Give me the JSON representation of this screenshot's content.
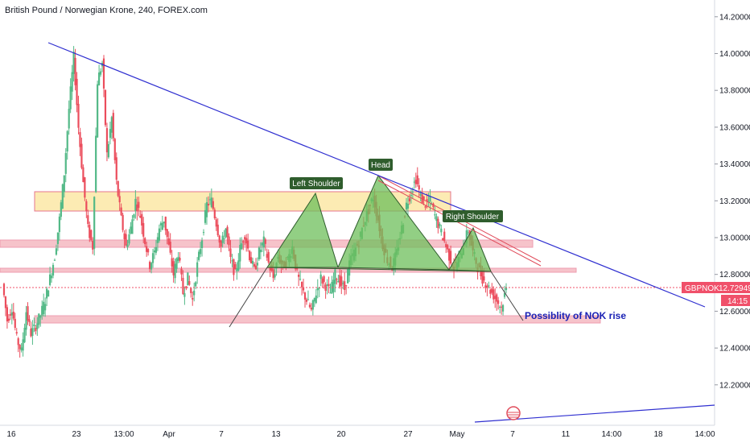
{
  "header": {
    "title": "British Pound / Norwegian Krone, 240, FOREX.com"
  },
  "colors": {
    "up": "#53b987",
    "down": "#eb4d5c",
    "trendline": "#2f2fd0",
    "pattern_fill": "#6dbf5b",
    "pattern_stroke": "#2f5d2d",
    "zone_pink": "#f3aab4",
    "zone_yellow": "#fce8a6",
    "price_tag": "#f0506a"
  },
  "chart_data": {
    "type": "candlestick",
    "ylim": [
      12.06,
      14.26
    ],
    "yticks": [
      "14.20000",
      "14.00000",
      "13.80000",
      "13.60000",
      "13.40000",
      "13.20000",
      "13.00000",
      "12.80000",
      "12.60000",
      "12.40000",
      "12.20000"
    ],
    "xlabels": [
      "16",
      "23",
      "13:00",
      "Apr",
      "7",
      "13",
      "20",
      "27",
      "May",
      "7",
      "11",
      "14:00",
      "18",
      "14:00"
    ],
    "current_price": {
      "symbol": "GBPNOK",
      "value": "12.72949",
      "countdown": "14:15"
    },
    "pattern": {
      "name": "head-and-shoulders",
      "labels": [
        "Left Shoulder",
        "Head",
        "Right Shoulder"
      ]
    },
    "annotation": "Possiblity of NOK rise",
    "ohlc_walk": [
      12.75,
      12.55,
      12.62,
      12.45,
      12.38,
      12.6,
      12.48,
      12.52,
      12.58,
      12.66,
      12.78,
      12.9,
      13.1,
      13.35,
      13.7,
      13.98,
      13.6,
      13.3,
      13.05,
      12.95,
      13.85,
      13.95,
      13.45,
      13.65,
      13.3,
      13.1,
      12.95,
      13.05,
      13.2,
      13.12,
      12.98,
      12.85,
      12.92,
      13.05,
      13.1,
      12.95,
      12.8,
      12.92,
      12.7,
      12.78,
      12.66,
      12.85,
      13.0,
      13.18,
      13.2,
      13.08,
      12.95,
      13.05,
      12.88,
      12.8,
      12.94,
      13.02,
      12.9,
      12.82,
      12.92,
      12.98,
      12.86,
      12.78,
      12.9,
      12.84,
      12.88,
      12.95,
      12.8,
      12.72,
      12.66,
      12.6,
      12.7,
      12.78,
      12.74,
      12.7,
      12.8,
      12.76,
      12.72,
      12.86,
      12.92,
      12.98,
      13.08,
      13.15,
      13.22,
      13.1,
      12.96,
      12.88,
      12.84,
      12.92,
      13.05,
      13.18,
      13.25,
      13.32,
      13.22,
      13.18,
      13.2,
      13.12,
      13.05,
      12.98,
      12.9,
      12.84,
      12.88,
      12.96,
      13.04,
      12.92,
      12.84,
      12.78,
      12.74,
      12.7,
      12.66,
      12.62,
      12.72
    ]
  }
}
